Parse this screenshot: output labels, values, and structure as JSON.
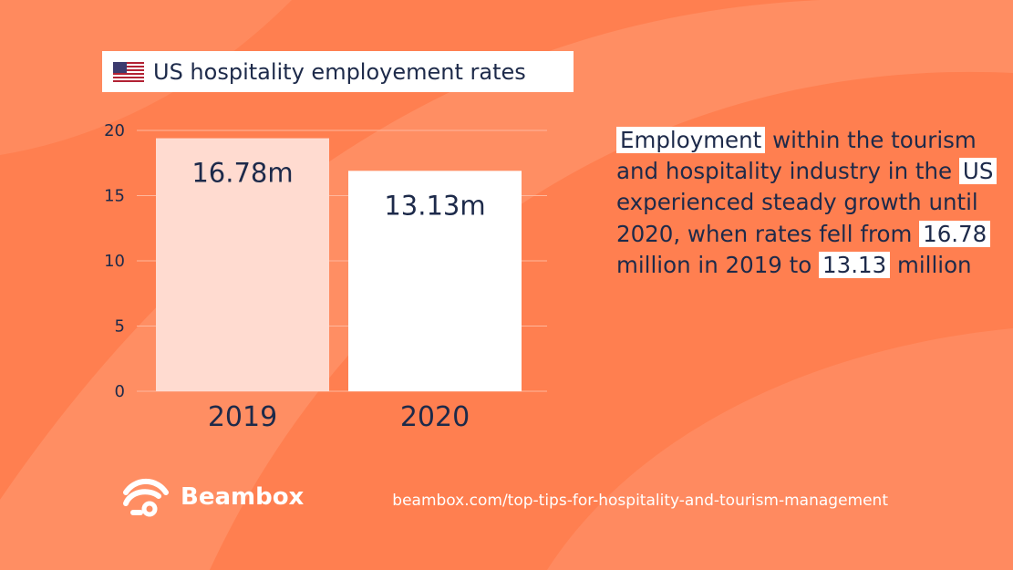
{
  "header": {
    "flag_icon": "us-flag-icon",
    "title": "US hospitality employement rates"
  },
  "chart_data": {
    "type": "bar",
    "categories": [
      "2019",
      "2020"
    ],
    "values": [
      16.78,
      13.13
    ],
    "data_labels": [
      "16.78m",
      "13.13m"
    ],
    "yticks": [
      0,
      5,
      10,
      15,
      20
    ],
    "ylim": [
      0,
      20
    ],
    "grid": true,
    "bar_colors": [
      "#ffdbd0",
      "#ffffff"
    ]
  },
  "description": {
    "hl_employment": "Employment",
    "t1": " within the tourism and hospitality industry in the ",
    "hl_us": "US",
    "t2": " experienced steady growth until 2020, when ",
    "rates_fell": "rates fell",
    "t3": " from ",
    "hl_1678": "16.78",
    "t4": " million in 2019 to ",
    "hl_1313": "13.13",
    "t5": " million"
  },
  "footer": {
    "brand": "Beambox",
    "url": "beambox.com/top-tips-for-hospitality-and-tourism-management"
  },
  "colors": {
    "background": "#ff7f50",
    "text": "#1d2a4a",
    "bar_2019": "#ffdbd0",
    "bar_2020": "#ffffff"
  }
}
